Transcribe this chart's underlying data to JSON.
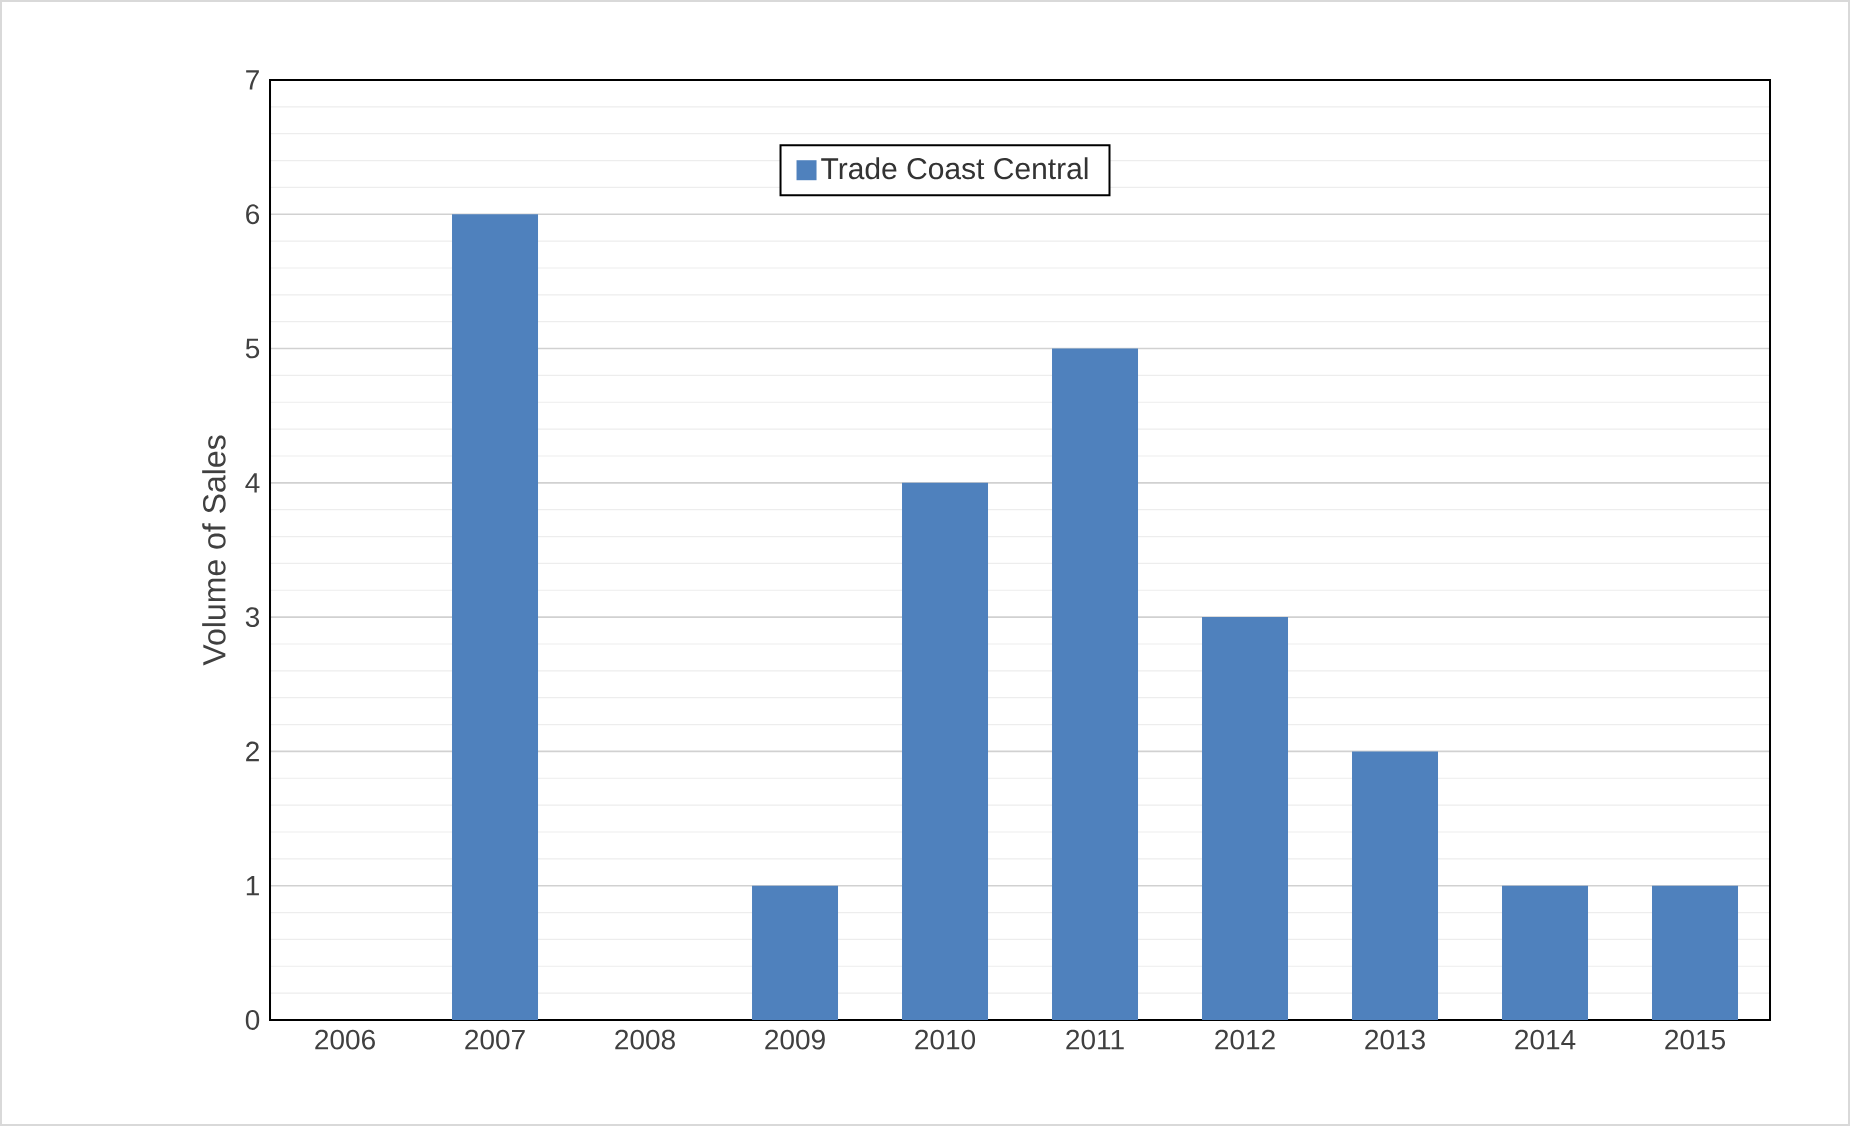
{
  "chart_data": {
    "type": "bar",
    "ylabel": "Volume of Sales",
    "categories": [
      "2006",
      "2007",
      "2008",
      "2009",
      "2010",
      "2011",
      "2012",
      "2013",
      "2014",
      "2015"
    ],
    "series": [
      {
        "name": "Trade Coast Central",
        "color": "#4f81bd",
        "values": [
          0,
          6,
          0,
          1,
          4,
          5,
          3,
          2,
          1,
          1
        ]
      }
    ],
    "ylim": [
      0,
      7
    ],
    "yticks": [
      0,
      1,
      2,
      3,
      4,
      5,
      6,
      7
    ],
    "grid": "y",
    "legend": "top"
  }
}
